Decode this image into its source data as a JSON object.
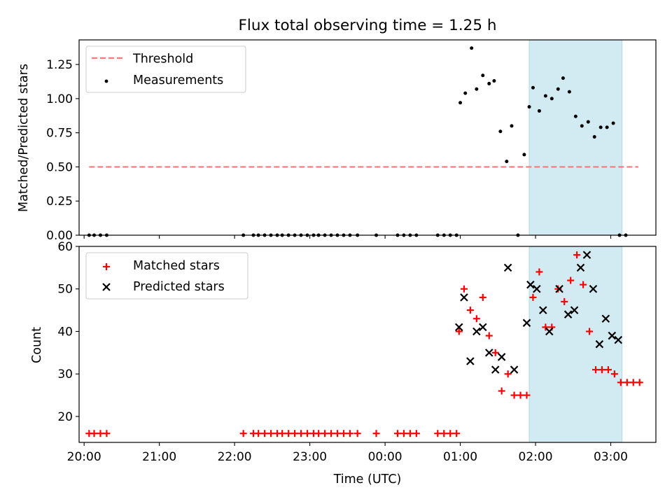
{
  "chart_data": [
    {
      "type": "scatter",
      "title": "Flux total observing time = 1.25 h",
      "xlabel": "",
      "ylabel": "Matched/Predicted stars",
      "ylim": [
        0,
        1.43
      ],
      "xlim": [
        "19:56",
        "03:36"
      ],
      "yticks": [
        "0.00",
        "0.25",
        "0.50",
        "0.75",
        "1.00",
        "1.25"
      ],
      "grid": false,
      "legend_position": "top-left",
      "highlight_band": {
        "start": "01:55",
        "end": "03:09",
        "color": "#add8e6"
      },
      "series": [
        {
          "name": "Threshold",
          "style": "dashed line",
          "color": "#ff7777",
          "x": [
            "20:04",
            "03:22"
          ],
          "y": [
            0.5,
            0.5
          ]
        },
        {
          "name": "Measurements",
          "style": "points",
          "color": "#000000",
          "x": [
            "20:04",
            "20:08",
            "20:13",
            "20:18",
            "22:07",
            "22:15",
            "22:19",
            "22:24",
            "22:29",
            "22:34",
            "22:38",
            "22:43",
            "22:48",
            "22:53",
            "22:58",
            "23:03",
            "23:07",
            "23:12",
            "23:17",
            "23:22",
            "23:27",
            "23:32",
            "23:38",
            "23:53",
            "00:10",
            "00:15",
            "00:20",
            "00:25",
            "00:42",
            "00:47",
            "00:52",
            "00:57",
            "01:00",
            "01:04",
            "01:09",
            "01:13",
            "01:18",
            "01:23",
            "01:27",
            "01:32",
            "01:37",
            "01:41",
            "01:46",
            "01:51",
            "01:55",
            "01:58",
            "02:03",
            "02:08",
            "02:13",
            "02:18",
            "02:22",
            "02:27",
            "02:32",
            "02:37",
            "02:42",
            "02:47",
            "02:52",
            "02:57",
            "03:02",
            "03:07",
            "03:12"
          ],
          "y": [
            0,
            0,
            0,
            0,
            0,
            0,
            0,
            0,
            0,
            0,
            0,
            0,
            0,
            0,
            0,
            0,
            0,
            0,
            0,
            0,
            0,
            0,
            0,
            0,
            0,
            0,
            0,
            0,
            0,
            0,
            0,
            0,
            0.97,
            1.04,
            1.37,
            1.07,
            1.17,
            1.11,
            1.13,
            0.76,
            0.54,
            0.8,
            0,
            0.59,
            0.94,
            1.08,
            0.91,
            1.02,
            1,
            1.07,
            1.15,
            1.05,
            0.87,
            0.8,
            0.83,
            0.72,
            0.79,
            0.79,
            0.82,
            0,
            0
          ]
        }
      ]
    },
    {
      "type": "scatter",
      "title": "",
      "xlabel": "Time (UTC)",
      "ylabel": "Count",
      "ylim": [
        13.9,
        60
      ],
      "xlim": [
        "19:56",
        "03:36"
      ],
      "xticks": [
        "20:00",
        "21:00",
        "22:00",
        "23:00",
        "00:00",
        "01:00",
        "02:00",
        "03:00"
      ],
      "yticks": [
        "20",
        "30",
        "40",
        "50",
        "60"
      ],
      "grid": false,
      "legend_position": "top-left",
      "highlight_band": {
        "start": "01:55",
        "end": "03:09",
        "color": "#add8e6"
      },
      "series": [
        {
          "name": "Matched stars",
          "marker": "plus",
          "color": "#ff0000",
          "x": [
            "20:04",
            "20:08",
            "20:13",
            "20:18",
            "22:07",
            "22:15",
            "22:19",
            "22:24",
            "22:29",
            "22:34",
            "22:38",
            "22:43",
            "22:48",
            "22:53",
            "22:58",
            "23:03",
            "23:07",
            "23:12",
            "23:17",
            "23:22",
            "23:27",
            "23:32",
            "23:38",
            "23:53",
            "00:10",
            "00:15",
            "00:20",
            "00:25",
            "00:42",
            "00:47",
            "00:52",
            "00:57",
            "00:59",
            "01:03",
            "01:08",
            "01:13",
            "01:18",
            "01:23",
            "01:28",
            "01:33",
            "01:38",
            "01:43",
            "01:48",
            "01:53",
            "01:58",
            "02:03",
            "02:08",
            "02:13",
            "02:18",
            "02:23",
            "02:28",
            "02:33",
            "02:38",
            "02:43",
            "02:48",
            "02:53",
            "02:58",
            "03:03",
            "03:08",
            "03:13",
            "03:18",
            "03:23"
          ],
          "y": [
            16,
            16,
            16,
            16,
            16,
            16,
            16,
            16,
            16,
            16,
            16,
            16,
            16,
            16,
            16,
            16,
            16,
            16,
            16,
            16,
            16,
            16,
            16,
            16,
            16,
            16,
            16,
            16,
            16,
            16,
            16,
            16,
            40,
            50,
            45,
            43,
            48,
            39,
            35,
            26,
            30,
            25,
            25,
            25,
            48,
            54,
            41,
            41,
            50,
            47,
            52,
            58,
            51,
            40,
            31,
            31,
            31,
            30,
            28,
            28,
            28,
            28
          ]
        },
        {
          "name": "Predicted stars",
          "marker": "x",
          "color": "#000000",
          "x": [
            "00:59",
            "01:03",
            "01:08",
            "01:13",
            "01:18",
            "01:23",
            "01:28",
            "01:33",
            "01:38",
            "01:43",
            "01:53",
            "01:56",
            "02:01",
            "02:06",
            "02:11",
            "02:19",
            "02:26",
            "02:31",
            "02:36",
            "02:41",
            "02:46",
            "02:51",
            "02:56",
            "03:01",
            "03:06"
          ],
          "y": [
            41,
            48,
            33,
            40,
            41,
            35,
            31,
            34,
            55,
            31,
            42,
            51,
            50,
            45,
            40,
            50,
            44,
            45,
            55,
            58,
            50,
            37,
            43,
            39,
            38
          ]
        }
      ]
    }
  ]
}
